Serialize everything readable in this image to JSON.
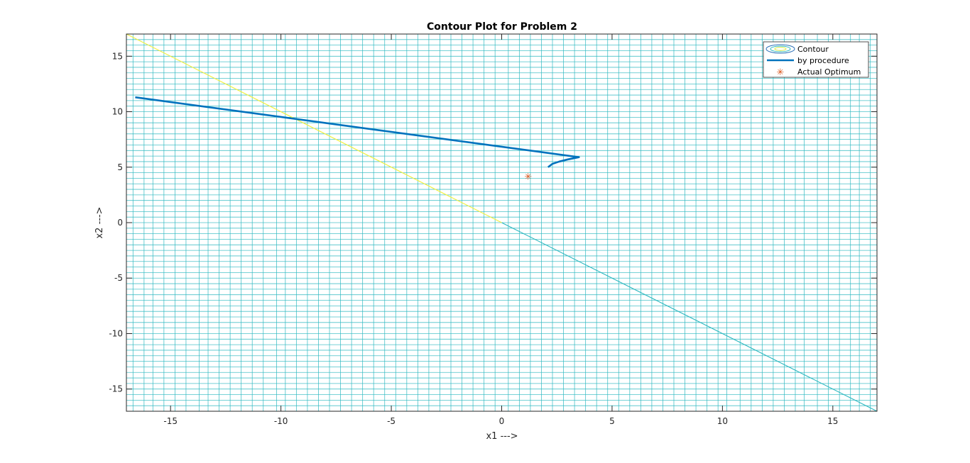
{
  "chart_data": {
    "type": "line",
    "title": "Contour Plot for Problem 2",
    "xlabel": "x1 --->",
    "ylabel": "x2 --->",
    "xlim": [
      -17,
      17
    ],
    "ylim": [
      -17,
      17
    ],
    "x_ticks": [
      -15,
      -10,
      -5,
      0,
      5,
      10,
      15
    ],
    "x_tick_labels": [
      "-15",
      "-10",
      "-5",
      "0",
      "5",
      "10",
      "15"
    ],
    "y_ticks": [
      -15,
      -10,
      -5,
      0,
      5,
      10,
      15
    ],
    "y_tick_labels": [
      "-15",
      "-10",
      "-5",
      "0",
      "5",
      "10",
      "15"
    ],
    "legend_position": "top-right",
    "legend": [
      "Contour",
      "by procedure",
      "Actual Optimum"
    ],
    "series": [
      {
        "name": "Contour",
        "kind": "contour",
        "color": "#2ab7bf",
        "x_levels": [
          -16.7,
          -16.2,
          -15.8,
          -15.3,
          -14.8,
          -14.3,
          -13.7,
          -13.3,
          -12.8,
          -12.3,
          -11.8,
          -11.3,
          -10.8,
          -10.2,
          -9.8,
          -9.3,
          -8.8,
          -8.3,
          -7.8,
          -7.3,
          -6.8,
          -6.3,
          -5.8,
          -5.3,
          -4.8,
          -4.3,
          -3.8,
          -3.3,
          -2.8,
          -2.3,
          -1.8,
          -1.3,
          -0.8,
          -0.3,
          0.3,
          0.8,
          1.3,
          1.8,
          2.3,
          2.8,
          3.3,
          3.8,
          4.3,
          4.8,
          5.3,
          5.8,
          6.3,
          6.8,
          7.3,
          7.8,
          8.3,
          8.8,
          9.3,
          9.8,
          10.2,
          10.8,
          11.3,
          11.8,
          12.3,
          12.8,
          13.3,
          13.7,
          14.3,
          14.8,
          15.3,
          15.8,
          16.2,
          16.7
        ],
        "y_levels": [
          -16.5,
          -16.0,
          -15.5,
          -15.0,
          -14.5,
          -14.0,
          -13.5,
          -13.0,
          -12.5,
          -12.0,
          -11.5,
          -11.0,
          -10.5,
          -10.0,
          -9.5,
          -9.0,
          -8.5,
          -8.0,
          -7.5,
          -7.0,
          -6.5,
          -6.0,
          -5.5,
          -5.0,
          -4.5,
          -4.0,
          -3.5,
          -3.0,
          -2.5,
          -2.0,
          -1.5,
          -1.0,
          -0.5,
          0.0,
          0.5,
          1.0,
          1.5,
          2.0,
          2.5,
          3.0,
          3.5,
          4.0,
          4.5,
          5.0,
          5.5,
          6.0,
          6.5,
          7.0,
          7.5,
          8.0,
          8.5,
          9.0,
          9.5,
          10.0,
          10.5,
          11.0,
          11.5,
          12.0,
          12.5,
          13.0,
          13.5,
          14.0,
          14.5,
          15.0,
          15.5,
          16.0,
          16.5
        ],
        "diagonal_upper_color": "#f0f040",
        "diagonal": {
          "x": [
            -17,
            0,
            17
          ],
          "y": [
            17,
            0,
            -17
          ]
        }
      },
      {
        "name": "by procedure",
        "kind": "line",
        "color": "#0072bd",
        "x": [
          -16.6,
          3.5,
          3.0,
          2.6,
          2.3,
          2.1
        ],
        "y": [
          11.3,
          5.9,
          5.7,
          5.5,
          5.3,
          5.0
        ]
      },
      {
        "name": "Actual Optimum",
        "kind": "marker",
        "marker": "*",
        "color": "#d95319",
        "x": [
          1.2
        ],
        "y": [
          4.2
        ]
      }
    ],
    "grid": false
  }
}
